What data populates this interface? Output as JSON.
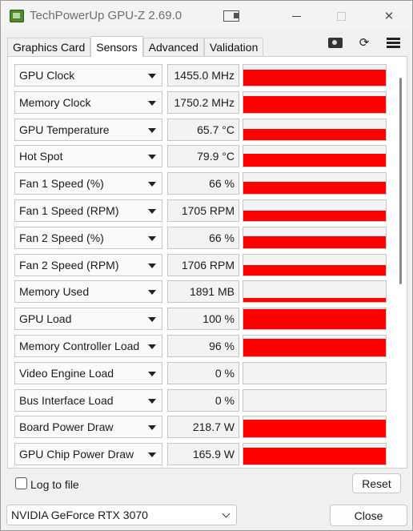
{
  "window": {
    "title": "TechPowerUp GPU-Z 2.69.0",
    "title_icons": {
      "screenshot": "screenshot-icon",
      "minimize": "minimize-icon",
      "maximize": "maximize-icon",
      "close": "close-icon",
      "close_glyph": "✕"
    }
  },
  "tabs": [
    {
      "label": "Graphics Card",
      "active": false
    },
    {
      "label": "Sensors",
      "active": true
    },
    {
      "label": "Advanced",
      "active": false
    },
    {
      "label": "Validation",
      "active": false
    }
  ],
  "toolbar": {
    "icons": [
      "camera-icon",
      "refresh-icon",
      "menu-icon"
    ],
    "refresh_glyph": "⟳"
  },
  "sensors": [
    {
      "name": "GPU Clock",
      "value": "1455.0 MHz",
      "level": 0.78
    },
    {
      "name": "Memory Clock",
      "value": "1750.2 MHz",
      "level": 0.82
    },
    {
      "name": "GPU Temperature",
      "value": "65.7 °C",
      "level": 0.52
    },
    {
      "name": "Hot Spot",
      "value": "79.9 °C",
      "level": 0.62
    },
    {
      "name": "Fan 1 Speed (%)",
      "value": "66 %",
      "level": 0.56
    },
    {
      "name": "Fan 1 Speed (RPM)",
      "value": "1705 RPM",
      "level": 0.5
    },
    {
      "name": "Fan 2 Speed (%)",
      "value": "66 %",
      "level": 0.56
    },
    {
      "name": "Fan 2 Speed (RPM)",
      "value": "1706 RPM",
      "level": 0.5
    },
    {
      "name": "Memory Used",
      "value": "1891 MB",
      "level": 0.2
    },
    {
      "name": "GPU Load",
      "value": "100 %",
      "level": 0.96
    },
    {
      "name": "Memory Controller Load",
      "value": "96 %",
      "level": 0.85
    },
    {
      "name": "Video Engine Load",
      "value": "0 %",
      "level": 0
    },
    {
      "name": "Bus Interface Load",
      "value": "0 %",
      "level": 0
    },
    {
      "name": "Board Power Draw",
      "value": "218.7 W",
      "level": 0.85
    },
    {
      "name": "GPU Chip Power Draw",
      "value": "165.9 W",
      "level": 0.82
    }
  ],
  "footer": {
    "log_to_file_label": "Log to file",
    "log_to_file_checked": false,
    "reset_label": "Reset",
    "gpu_selected": "NVIDIA GeForce RTX 3070",
    "close_label": "Close"
  },
  "colors": {
    "graph_fill": "#ff0000",
    "window_bg": "#f0f0f0"
  }
}
